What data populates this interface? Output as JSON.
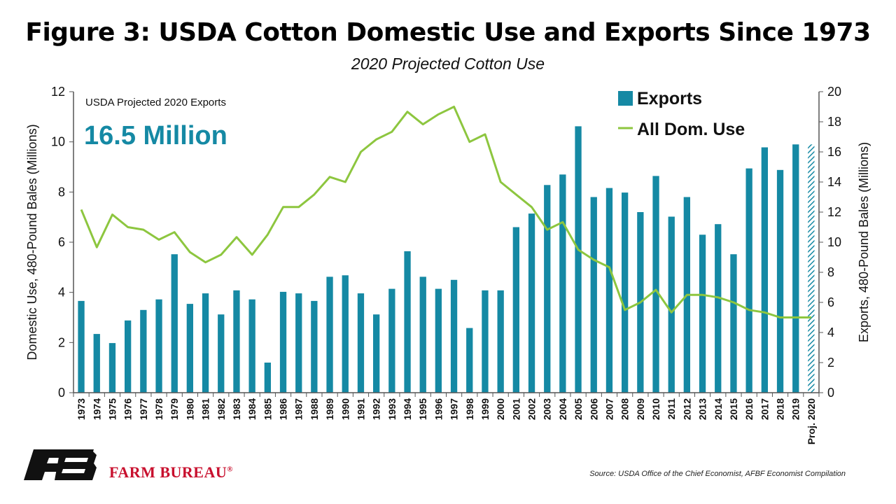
{
  "title": "Figure 3: USDA Cotton Domestic Use and Exports Since 1973",
  "subtitle": "2020 Projected Cotton Use",
  "source": "Source: USDA Office of the Chief Economist, AFBF Economist Compilation",
  "brand": {
    "name": "FARM BUREAU",
    "mark": "®",
    "logo_text": "FB"
  },
  "annotation": {
    "label": "USDA Projected 2020 Exports",
    "value": "16.5 Million"
  },
  "colors": {
    "exports": "#1589a4",
    "domestic": "#8dc63f",
    "annotation_value": "#1589a4",
    "brand": "#c8102e"
  },
  "chart_data": {
    "type": "bar",
    "categories": [
      "1973",
      "1974",
      "1975",
      "1976",
      "1977",
      "1978",
      "1979",
      "1980",
      "1981",
      "1982",
      "1983",
      "1984",
      "1985",
      "1986",
      "1987",
      "1988",
      "1989",
      "1990",
      "1991",
      "1992",
      "1993",
      "1994",
      "1995",
      "1996",
      "1997",
      "1998",
      "1999",
      "2000",
      "2001",
      "2002",
      "2003",
      "2004",
      "2005",
      "2006",
      "2007",
      "2008",
      "2009",
      "2010",
      "2011",
      "2012",
      "2013",
      "2014",
      "2015",
      "2016",
      "2017",
      "2018",
      "2019",
      "Proj. 2020"
    ],
    "projected_category": "Proj. 2020",
    "series": [
      {
        "name": "Exports",
        "type": "bar",
        "axis": "right",
        "values": [
          6.1,
          3.9,
          3.3,
          4.8,
          5.5,
          6.2,
          9.2,
          5.9,
          6.6,
          5.2,
          6.8,
          6.2,
          2.0,
          6.7,
          6.6,
          6.1,
          7.7,
          7.8,
          6.6,
          5.2,
          6.9,
          9.4,
          7.7,
          6.9,
          7.5,
          4.3,
          6.8,
          6.8,
          11.0,
          11.9,
          13.8,
          14.5,
          17.7,
          13.0,
          13.6,
          13.3,
          12.0,
          14.4,
          11.7,
          13.0,
          10.5,
          11.2,
          9.2,
          14.9,
          16.3,
          14.8,
          16.5,
          16.5
        ]
      },
      {
        "name": "All Dom. Use",
        "type": "line",
        "axis": "left",
        "values": [
          7.3,
          5.8,
          7.1,
          6.6,
          6.5,
          6.1,
          6.4,
          5.6,
          5.2,
          5.5,
          6.2,
          5.5,
          6.3,
          7.4,
          7.4,
          7.9,
          8.6,
          8.4,
          9.6,
          10.1,
          10.4,
          11.2,
          10.7,
          11.1,
          11.4,
          10.0,
          10.3,
          8.4,
          7.9,
          7.4,
          6.5,
          6.8,
          5.7,
          5.3,
          5.0,
          3.3,
          3.6,
          4.1,
          3.2,
          3.9,
          3.9,
          3.8,
          3.6,
          3.3,
          3.2,
          3.0,
          3.0,
          3.0
        ]
      }
    ],
    "left_axis": {
      "label": "Domestic Use, 480-Pound Bales (Millions)",
      "min": 0,
      "max": 12,
      "ticks": [
        0,
        2,
        4,
        6,
        8,
        10,
        12
      ]
    },
    "right_axis": {
      "label": "Exports, 480-Pound Bales (Millions)",
      "min": 0,
      "max": 20,
      "ticks": [
        0,
        2,
        4,
        6,
        8,
        10,
        12,
        14,
        16,
        18,
        20
      ]
    },
    "grid": false,
    "legend_position": "top-right"
  }
}
